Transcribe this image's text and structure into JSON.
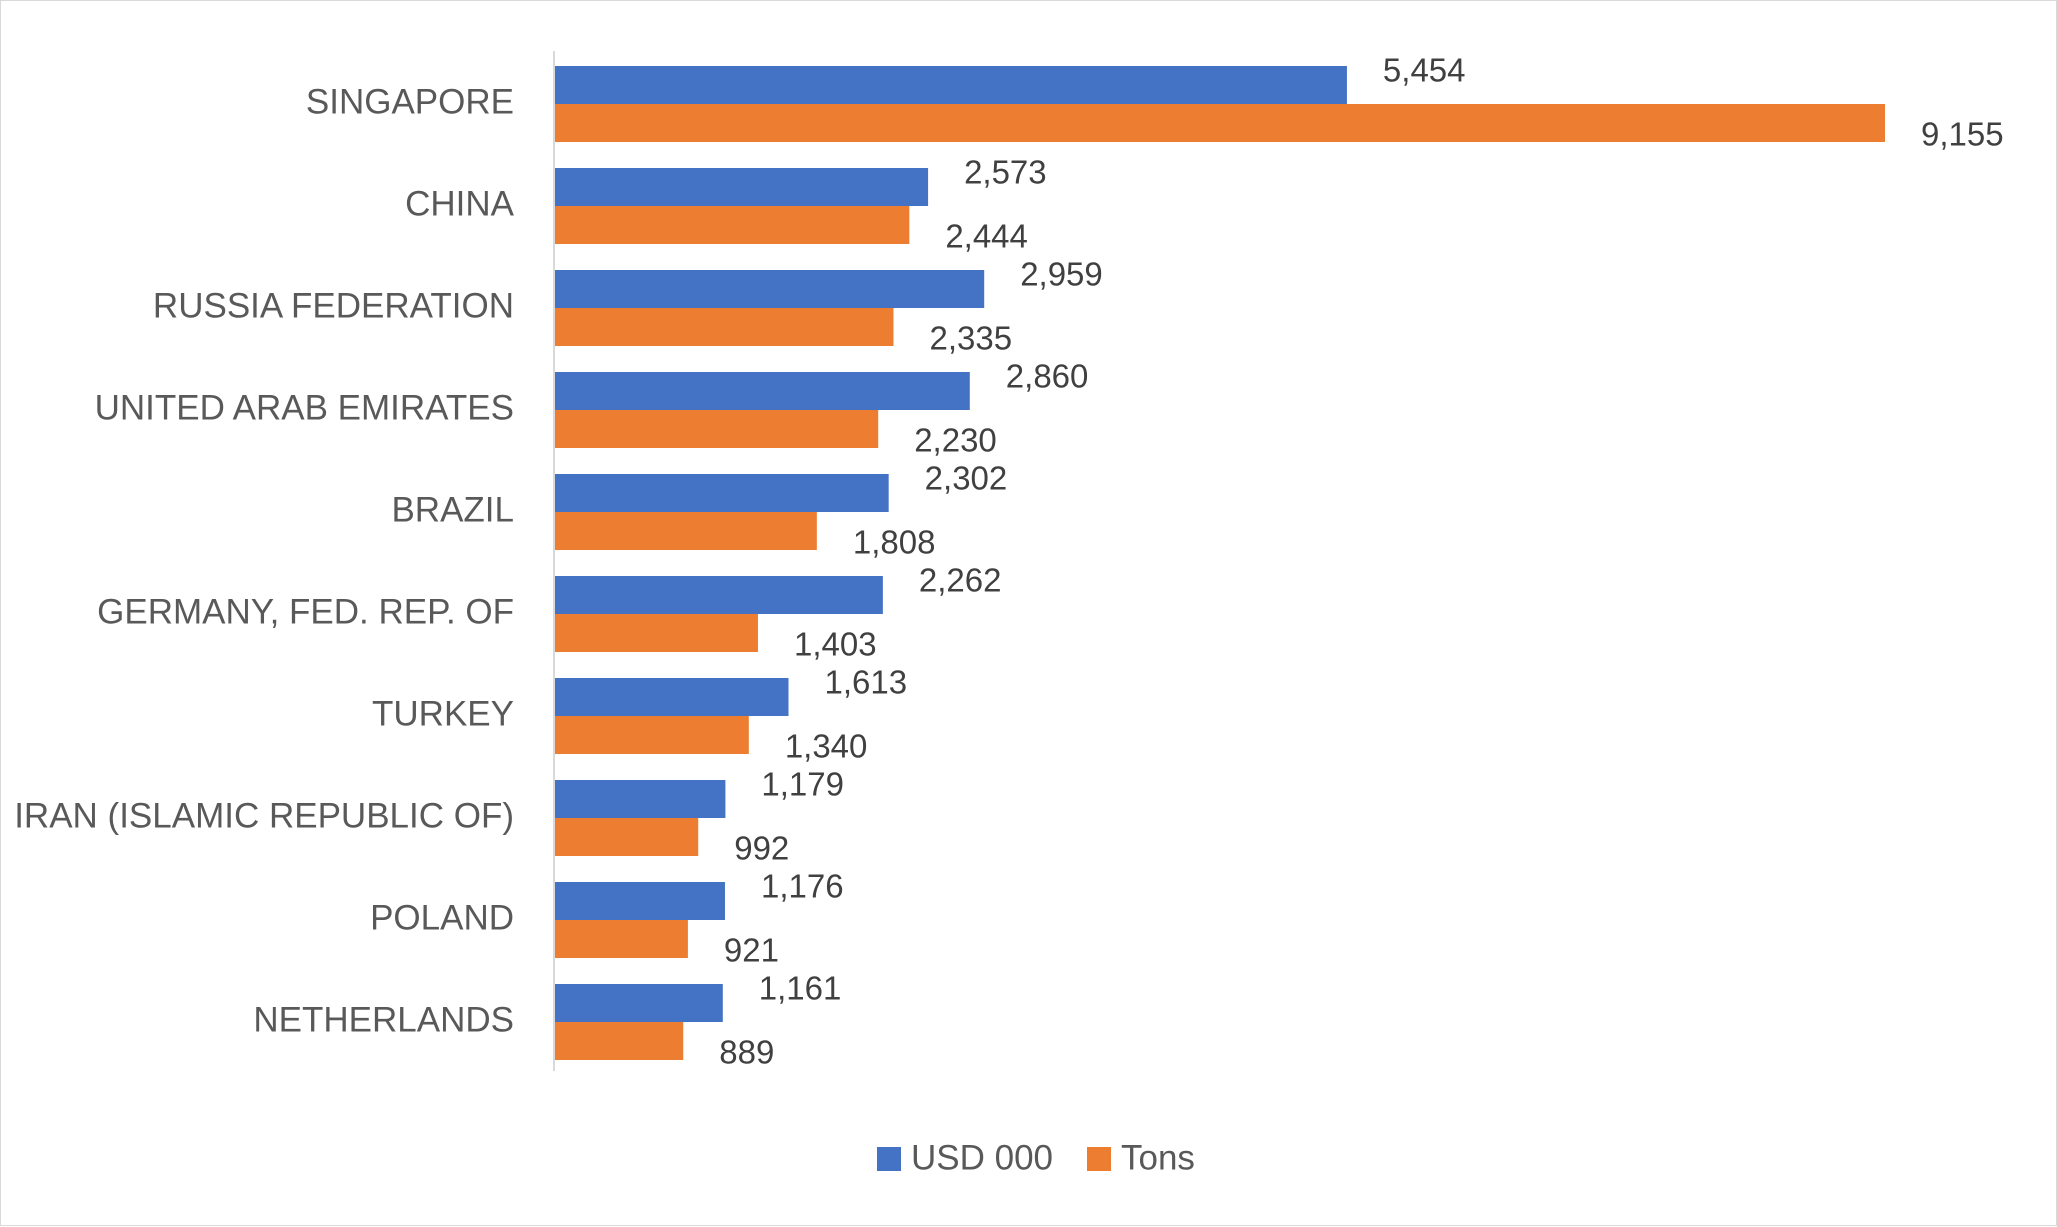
{
  "chart_data": {
    "type": "bar",
    "orientation": "horizontal",
    "title": "",
    "xlabel": "",
    "ylabel": "",
    "categories": [
      "SINGAPORE",
      "CHINA",
      "RUSSIA FEDERATION",
      "UNITED ARAB EMIRATES",
      "BRAZIL",
      "GERMANY, FED. REP. OF",
      "TURKEY",
      "IRAN (ISLAMIC REPUBLIC OF)",
      "POLAND",
      "NETHERLANDS"
    ],
    "series": [
      {
        "name": "USD 000",
        "color": "#4472C4",
        "values": [
          5454,
          2573,
          2959,
          2860,
          2302,
          2262,
          1613,
          1179,
          1176,
          1161
        ],
        "labels": [
          "5,454",
          "2,573",
          "2,959",
          "2,860",
          "2,302",
          "2,262",
          "1,613",
          "1,179",
          "1,176",
          "1,161"
        ]
      },
      {
        "name": "Tons",
        "color": "#ED7D31",
        "values": [
          9155,
          2444,
          2335,
          2230,
          1808,
          1403,
          1340,
          992,
          921,
          889
        ],
        "labels": [
          "9,155",
          "2,444",
          "2,335",
          "2,230",
          "1,808",
          "1,403",
          "1,340",
          "992",
          "921",
          "889"
        ]
      }
    ],
    "xlim": [
      0,
      9155
    ],
    "grid": false,
    "legend_position": "bottom"
  },
  "colors": {
    "axis": "#d9d9d9",
    "category_text": "#595959",
    "label_text": "#404040"
  }
}
